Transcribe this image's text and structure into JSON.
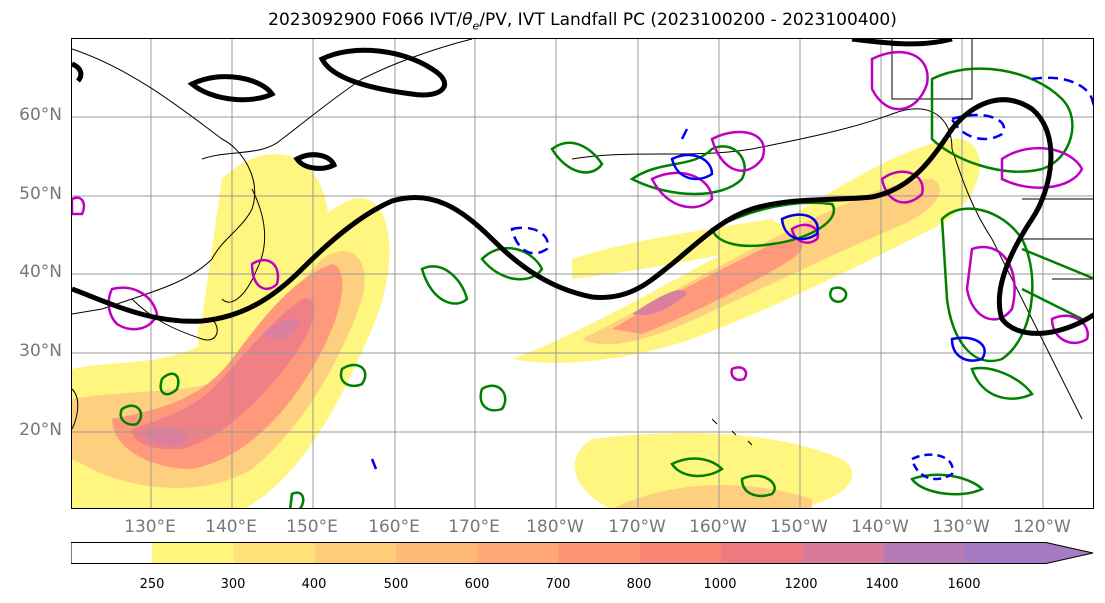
{
  "title": {
    "prefix": "2023092900 F066 IVT/",
    "theta": "θ",
    "theta_sub": "e",
    "suffix": "/PV, IVT Landfall PC (2023100200 - 2023100400)"
  },
  "lat_labels": [
    "60°N",
    "50°N",
    "40°N",
    "30°N",
    "20°N"
  ],
  "lon_labels": [
    "130°E",
    "140°E",
    "150°E",
    "160°E",
    "170°E",
    "180°W",
    "170°W",
    "160°W",
    "150°W",
    "140°W",
    "130°W",
    "120°W"
  ],
  "colorbar": {
    "tick_labels": [
      "250",
      "300",
      "400",
      "500",
      "600",
      "700",
      "800",
      "1000",
      "1200",
      "1400",
      "1600"
    ],
    "colors": [
      "#ffffff",
      "#fff67a",
      "#ffe27a",
      "#ffcd7a",
      "#ffba78",
      "#ffa776",
      "#ff9474",
      "#fb8373",
      "#ee7a80",
      "#d97a99",
      "#b47ab5",
      "#a47bc4"
    ]
  },
  "colors": {
    "pv_contour": "#008000",
    "theta_contour_magenta": "#c000c0",
    "theta_contour_blue": "#0000ee",
    "jet_line": "#000000",
    "grid": "#999999",
    "coast": "#000000"
  }
}
